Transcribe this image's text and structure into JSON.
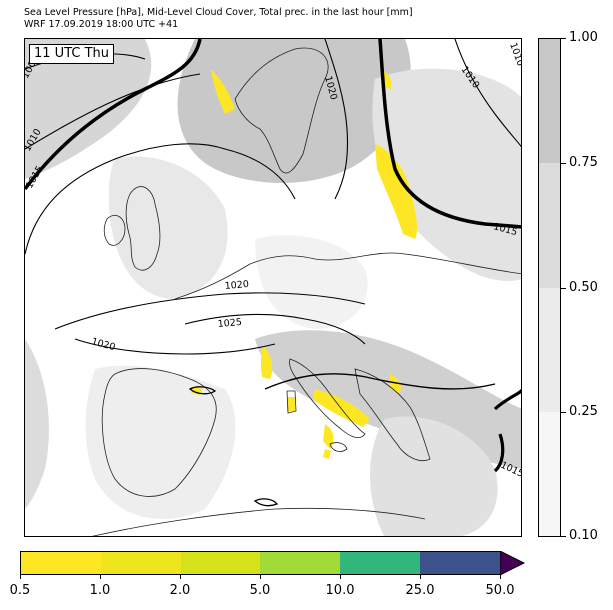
{
  "header": {
    "title_line1": "Sea Level Pressure [hPa], Mid-Level Cloud Cover, Total prec. in the last hour [mm]",
    "title_line2": "WRF 17.09.2019 18:00 UTC +41"
  },
  "map": {
    "time_label": "11 UTC Thu",
    "isobar_labels": [
      "1005",
      "1010",
      "1015",
      "1020",
      "1010",
      "1015",
      "1020",
      "1020",
      "1025",
      "1010",
      "1015"
    ],
    "colors": {
      "land": "#ffffff",
      "cloud_light": "#e6e6e6",
      "cloud_mid": "#d4d4d4",
      "cloud_dark": "#c4c4c4",
      "precip": "#fde725",
      "isobar": "#000000"
    }
  },
  "cloud_colorbar": {
    "ticks": [
      "1.00",
      "0.75",
      "0.50",
      "0.25",
      "0.10"
    ],
    "colors": [
      "#c8c8c8",
      "#dcdcdc",
      "#ebebeb",
      "#f6f6f6"
    ]
  },
  "precip_colorbar": {
    "ticks": [
      "0.5",
      "1.0",
      "2.0",
      "5.0",
      "10.0",
      "25.0",
      "50.0"
    ],
    "colors": [
      "#fde725",
      "#eee51c",
      "#d5e21a",
      "#a2da37",
      "#31b77b",
      "#3b528b"
    ],
    "extend_color": "#440154"
  }
}
